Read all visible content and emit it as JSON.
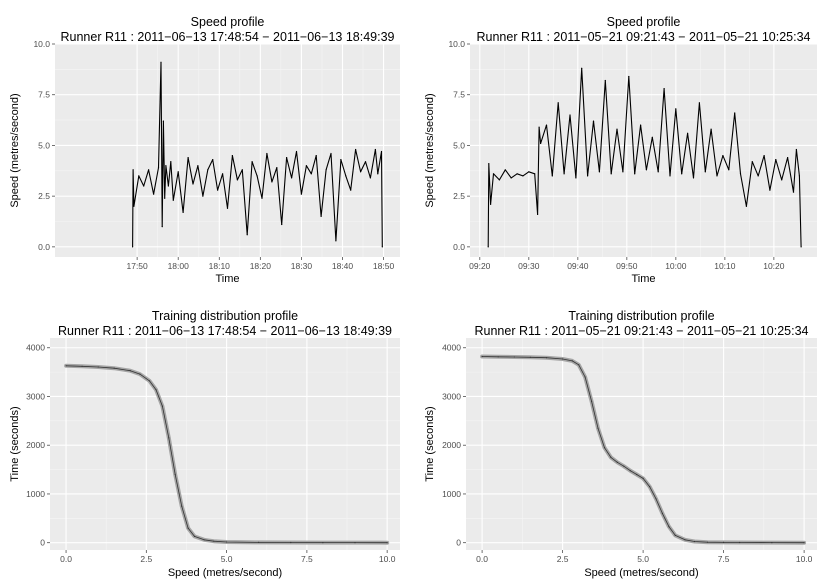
{
  "chart_data": [
    {
      "type": "line",
      "title": "Speed profile",
      "subtitle": "Runner R11 : 2011−06−13 17:48:54 − 2011−06−13 18:49:39",
      "xlabel": "Time",
      "ylabel": "Speed (metres/second)",
      "xlim": [
        17.5,
        18.9
      ],
      "ylim": [
        -0.5,
        10.0
      ],
      "x_ticks": [
        17.8333,
        18.0,
        18.1667,
        18.3333,
        18.5,
        18.6667,
        18.8333
      ],
      "x_tick_labels": [
        "17:50",
        "18:00",
        "18:10",
        "18:20",
        "18:30",
        "18:40",
        "18:50"
      ],
      "y_ticks": [
        0.0,
        2.5,
        5.0,
        7.5,
        10.0
      ],
      "y_tick_labels": [
        "0.0",
        "2.5",
        "5.0",
        "7.5",
        "10.0"
      ],
      "series": [
        {
          "name": "speed",
          "x": [
            17.815,
            17.817,
            17.82,
            17.84,
            17.86,
            17.88,
            17.9,
            17.92,
            17.93,
            17.935,
            17.94,
            17.945,
            17.95,
            17.96,
            17.97,
            17.98,
            18.0,
            18.02,
            18.04,
            18.06,
            18.08,
            18.1,
            18.12,
            18.14,
            18.16,
            18.18,
            18.2,
            18.22,
            18.24,
            18.26,
            18.28,
            18.3,
            18.32,
            18.34,
            18.36,
            18.38,
            18.4,
            18.42,
            18.44,
            18.46,
            18.48,
            18.5,
            18.52,
            18.54,
            18.56,
            18.58,
            18.6,
            18.62,
            18.64,
            18.66,
            18.68,
            18.7,
            18.72,
            18.74,
            18.76,
            18.78,
            18.8,
            18.81,
            18.825,
            18.828
          ],
          "y": [
            0.0,
            3.8,
            2.0,
            3.5,
            3.0,
            3.8,
            2.6,
            3.9,
            9.1,
            1.0,
            6.2,
            2.4,
            4.0,
            3.0,
            4.2,
            2.3,
            3.7,
            1.7,
            4.4,
            3.1,
            4.0,
            2.5,
            3.8,
            4.3,
            2.8,
            3.6,
            1.9,
            4.5,
            3.3,
            3.8,
            0.6,
            4.2,
            3.5,
            2.4,
            4.6,
            3.2,
            3.9,
            1.1,
            4.4,
            3.4,
            4.7,
            2.6,
            4.0,
            3.6,
            4.5,
            1.5,
            3.8,
            4.6,
            0.3,
            4.3,
            3.5,
            2.8,
            4.8,
            3.7,
            4.2,
            3.4,
            4.8,
            3.6,
            4.7,
            0.0
          ]
        }
      ]
    },
    {
      "type": "line",
      "title": "Speed profile",
      "subtitle": "Runner R11 : 2011−05−21 09:21:43 − 2011−05−21 10:25:34",
      "xlabel": "Time",
      "ylabel": "Speed (metres/second)",
      "xlim": [
        9.3,
        10.48
      ],
      "ylim": [
        -0.5,
        10.0
      ],
      "x_ticks": [
        9.3333,
        9.5,
        9.6667,
        9.8333,
        10.0,
        10.1667,
        10.3333
      ],
      "x_tick_labels": [
        "09:20",
        "09:30",
        "09:40",
        "09:50",
        "10:00",
        "10:10",
        "10:20"
      ],
      "y_ticks": [
        0.0,
        2.5,
        5.0,
        7.5,
        10.0
      ],
      "y_tick_labels": [
        "0.0",
        "2.5",
        "5.0",
        "7.5",
        "10.0"
      ],
      "series": [
        {
          "name": "speed",
          "x": [
            9.362,
            9.364,
            9.37,
            9.38,
            9.4,
            9.42,
            9.44,
            9.46,
            9.48,
            9.5,
            9.52,
            9.53,
            9.535,
            9.54,
            9.56,
            9.58,
            9.6,
            9.62,
            9.64,
            9.66,
            9.68,
            9.7,
            9.72,
            9.74,
            9.76,
            9.78,
            9.8,
            9.82,
            9.84,
            9.86,
            9.88,
            9.9,
            9.92,
            9.94,
            9.96,
            9.98,
            10.0,
            10.02,
            10.04,
            10.06,
            10.08,
            10.1,
            10.12,
            10.14,
            10.16,
            10.18,
            10.2,
            10.22,
            10.24,
            10.26,
            10.28,
            10.3,
            10.32,
            10.34,
            10.36,
            10.38,
            10.4,
            10.41,
            10.42,
            10.426
          ],
          "y": [
            0.0,
            4.1,
            2.1,
            3.6,
            3.3,
            3.8,
            3.4,
            3.6,
            3.5,
            3.7,
            3.6,
            1.6,
            5.9,
            5.1,
            6.0,
            3.5,
            7.1,
            3.6,
            6.5,
            3.4,
            8.8,
            3.5,
            6.2,
            3.7,
            8.2,
            3.6,
            5.8,
            3.7,
            8.4,
            3.6,
            6.0,
            3.8,
            5.4,
            3.7,
            7.8,
            3.5,
            6.8,
            3.6,
            5.6,
            3.4,
            7.1,
            3.7,
            5.8,
            3.5,
            4.5,
            3.8,
            6.6,
            3.6,
            2.0,
            4.2,
            3.5,
            4.5,
            2.8,
            4.3,
            3.3,
            4.4,
            2.7,
            4.8,
            3.5,
            0.0
          ]
        }
      ]
    },
    {
      "type": "line",
      "title": "Training distribution profile",
      "subtitle": "Runner R11 : 2011−06−13 17:48:54 − 2011−06−13 18:49:39",
      "xlabel": "Speed (metres/second)",
      "ylabel": "Time (seconds)",
      "xlim": [
        -0.5,
        10.4
      ],
      "ylim": [
        -150,
        4200
      ],
      "x_ticks": [
        0.0,
        2.5,
        5.0,
        7.5,
        10.0
      ],
      "x_tick_labels": [
        "0.0",
        "2.5",
        "5.0",
        "7.5",
        "10.0"
      ],
      "y_ticks": [
        0,
        1000,
        2000,
        3000,
        4000
      ],
      "y_tick_labels": [
        "0",
        "1000",
        "2000",
        "3000",
        "4000"
      ],
      "series": [
        {
          "name": "cumulative time",
          "x": [
            0.0,
            0.5,
            1.0,
            1.5,
            2.0,
            2.3,
            2.6,
            2.8,
            3.0,
            3.2,
            3.4,
            3.6,
            3.8,
            4.0,
            4.3,
            4.6,
            5.0,
            6.0,
            7.0,
            8.0,
            9.0,
            10.0
          ],
          "y": [
            3630,
            3620,
            3605,
            3580,
            3530,
            3460,
            3320,
            3140,
            2800,
            2150,
            1400,
            750,
            300,
            130,
            60,
            30,
            15,
            5,
            3,
            2,
            1,
            0
          ]
        }
      ]
    },
    {
      "type": "line",
      "title": "Training distribution profile",
      "subtitle": "Runner R11 : 2011−05−21 09:21:43 − 2011−05−21 10:25:34",
      "xlabel": "Speed (metres/second)",
      "ylabel": "Time (seconds)",
      "xlim": [
        -0.5,
        10.4
      ],
      "ylim": [
        -150,
        4200
      ],
      "x_ticks": [
        0.0,
        2.5,
        5.0,
        7.5,
        10.0
      ],
      "x_tick_labels": [
        "0.0",
        "2.5",
        "5.0",
        "7.5",
        "10.0"
      ],
      "y_ticks": [
        0,
        1000,
        2000,
        3000,
        4000
      ],
      "y_tick_labels": [
        "0",
        "1000",
        "2000",
        "3000",
        "4000"
      ],
      "series": [
        {
          "name": "cumulative time",
          "x": [
            0.0,
            0.5,
            1.0,
            1.5,
            2.0,
            2.5,
            2.8,
            3.0,
            3.2,
            3.4,
            3.6,
            3.8,
            4.0,
            4.2,
            4.4,
            4.6,
            4.8,
            5.0,
            5.2,
            5.4,
            5.6,
            5.8,
            6.0,
            6.3,
            6.6,
            7.0,
            7.5,
            8.0,
            9.0,
            10.0
          ],
          "y": [
            3820,
            3815,
            3810,
            3805,
            3795,
            3770,
            3730,
            3650,
            3400,
            2900,
            2350,
            1950,
            1750,
            1650,
            1570,
            1480,
            1400,
            1320,
            1150,
            900,
            600,
            330,
            150,
            60,
            25,
            10,
            5,
            3,
            1,
            0
          ]
        }
      ]
    }
  ]
}
